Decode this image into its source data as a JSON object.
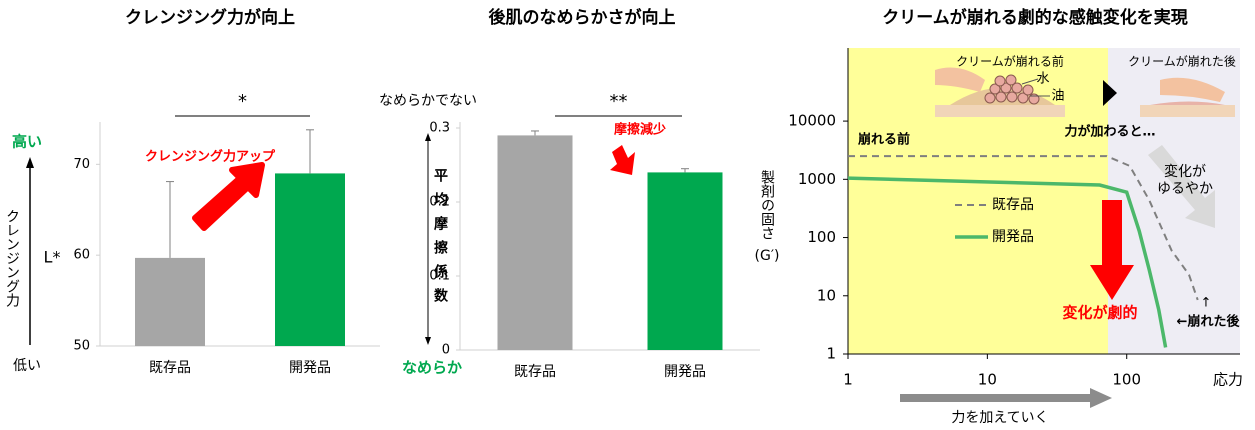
{
  "chart_data": [
    {
      "type": "bar",
      "title": "クレンジング力が向上",
      "categories": [
        "既存品",
        "開発品"
      ],
      "values": [
        59.7,
        69.0
      ],
      "errors": [
        8.4,
        4.8
      ],
      "colors": [
        "#a6a6a6",
        "#00a84f"
      ],
      "ylabel": "L*",
      "ylim": [
        50,
        74
      ],
      "yticks": [
        50,
        60,
        70
      ],
      "significance": "*",
      "annotations": [
        "高い",
        "低い",
        "クレンジング力",
        "クレンジング力アップ"
      ]
    },
    {
      "type": "bar",
      "title": "後肌のなめらかさが向上",
      "categories": [
        "既存品",
        "開発品"
      ],
      "values": [
        0.29,
        0.24
      ],
      "errors": [
        0.006,
        0.005
      ],
      "colors": [
        "#a6a6a6",
        "#00a84f"
      ],
      "ylabel": "平均摩擦係数",
      "ylim": [
        0,
        0.3
      ],
      "yticks": [
        0,
        0.1,
        0.2,
        0.3
      ],
      "significance": "**",
      "annotations": [
        "なめらかでない",
        "なめらか",
        "摩擦減少"
      ]
    },
    {
      "type": "line",
      "title": "クリームが崩れる劇的な感触変化を実現",
      "xlabel": "応力",
      "xlabel2": "力を加えていく",
      "ylabel": "製剤の固さ",
      "ylabel_unit": "(G′)",
      "xscale": "log",
      "yscale": "log",
      "xlim": [
        1,
        650
      ],
      "ylim": [
        1,
        180000
      ],
      "xticks": [
        1,
        10,
        100
      ],
      "yticks": [
        1,
        10,
        100,
        1000,
        10000
      ],
      "series": [
        {
          "name": "既存品",
          "color": "#7f7f7f",
          "dash": true,
          "x": [
            1,
            72,
            105,
            145,
            210,
            280,
            323
          ],
          "values": [
            2500,
            2500,
            1700,
            440,
            60,
            23,
            8.5
          ]
        },
        {
          "name": "開発品",
          "color": "#4cb86a",
          "dash": false,
          "x": [
            1,
            64,
            100,
            123,
            145,
            170,
            190
          ],
          "values": [
            1050,
            800,
            600,
            130,
            28,
            5.7,
            1.3
          ]
        }
      ],
      "annotations": [
        "崩れる前",
        "力が加わると…",
        "変化が",
        "ゆるやか",
        "変化が劇的",
        "←崩れた後",
        "↑",
        "クリームが崩れる前",
        "水",
        "油",
        "クリームが崩れた後"
      ]
    }
  ]
}
